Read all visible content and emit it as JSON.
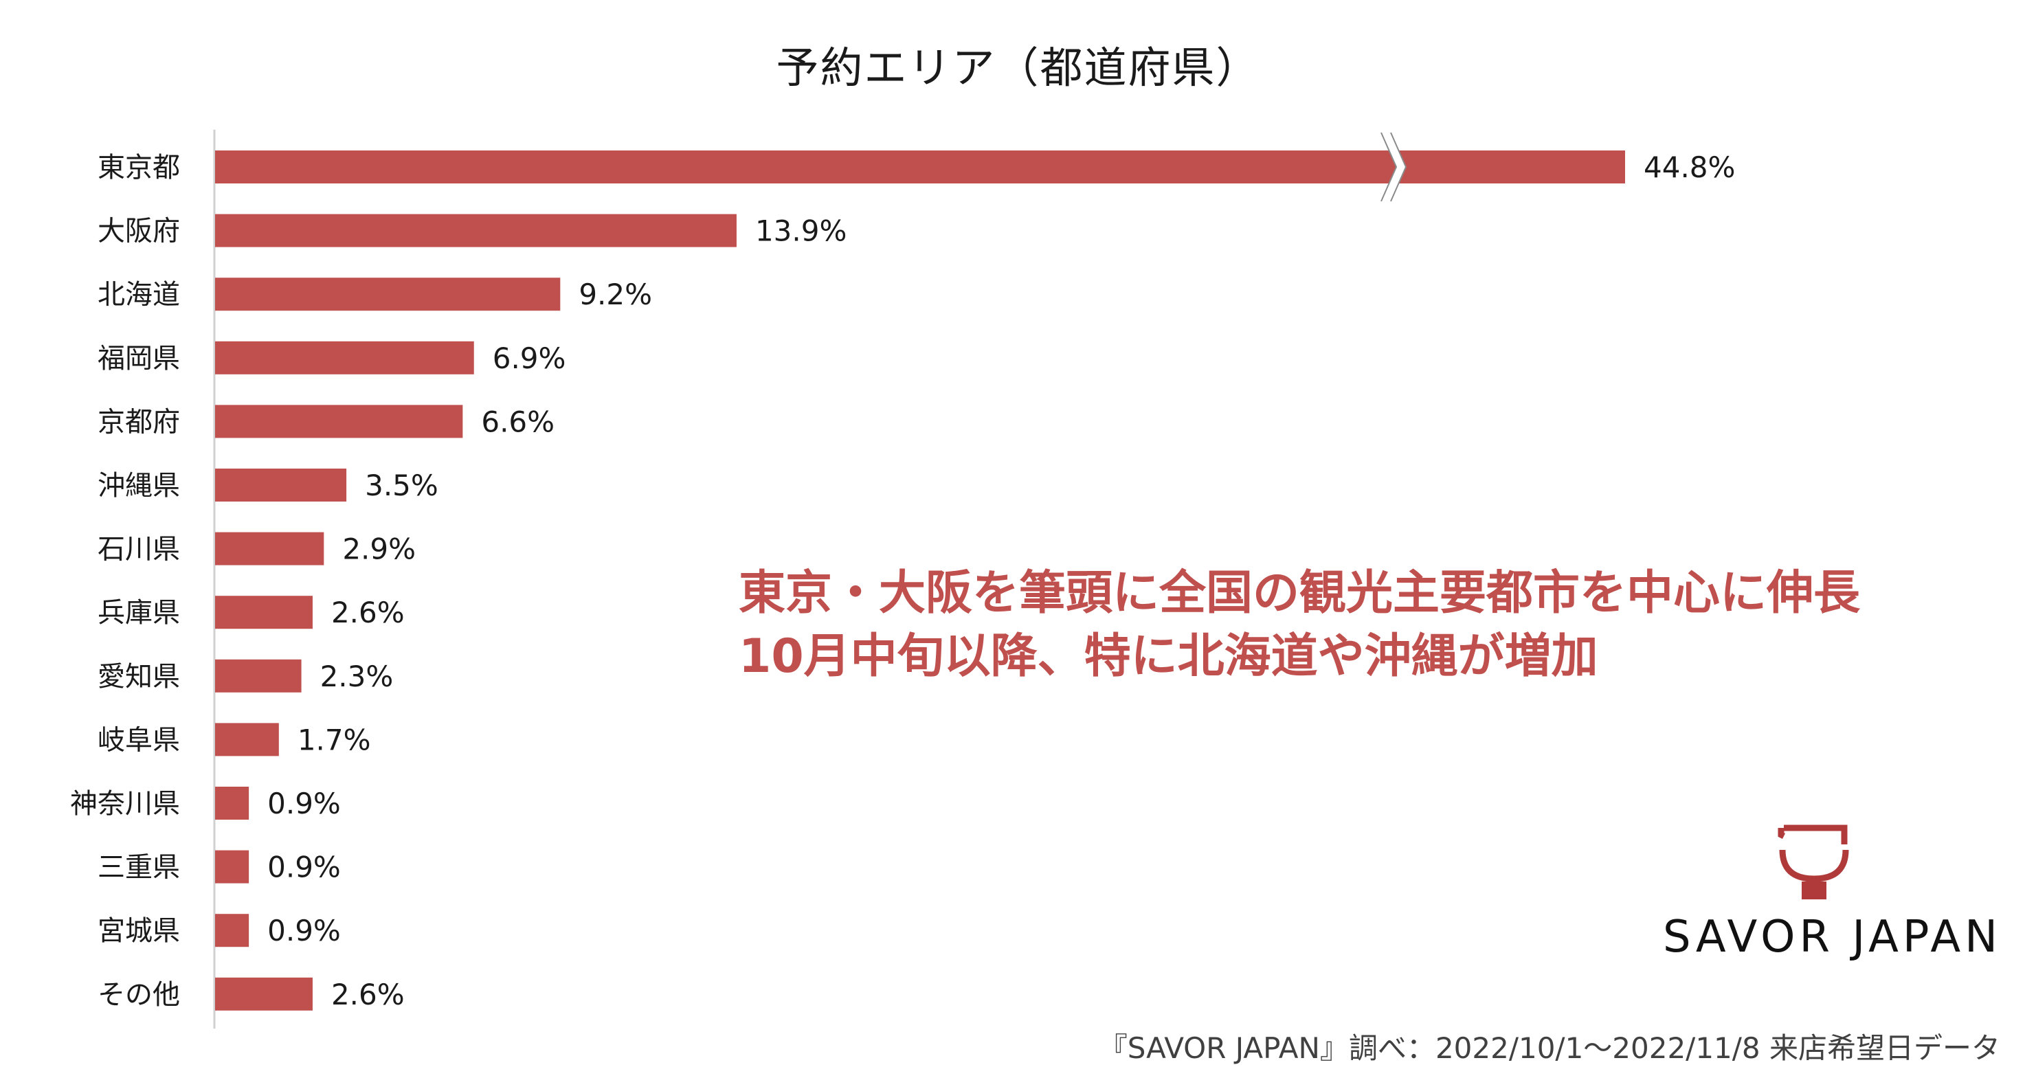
{
  "chart_data": {
    "type": "bar",
    "orientation": "horizontal",
    "title": "予約エリア（都道府県）",
    "categories": [
      "東京都",
      "大阪府",
      "北海道",
      "福岡県",
      "京都府",
      "沖縄県",
      "石川県",
      "兵庫県",
      "愛知県",
      "岐阜県",
      "神奈川県",
      "三重県",
      "宮城県",
      "その他"
    ],
    "values": [
      44.8,
      13.9,
      9.2,
      6.9,
      6.6,
      3.5,
      2.9,
      2.6,
      2.3,
      1.7,
      0.9,
      0.9,
      0.9,
      2.6
    ],
    "value_labels": [
      "44.8%",
      "13.9%",
      "9.2%",
      "6.9%",
      "6.6%",
      "3.5%",
      "2.9%",
      "2.6%",
      "2.3%",
      "1.7%",
      "0.9%",
      "0.9%",
      "0.9%",
      "2.6%"
    ],
    "unit": "%",
    "axis_break": {
      "category": "東京都",
      "note": "broken axis"
    },
    "grid": false,
    "legend": "none",
    "xlabel": "",
    "ylabel": ""
  },
  "annotation": {
    "line1": "東京・大阪を筆頭に全国の観光主要都市を中心に伸長",
    "line2": "10月中旬以降、特に北海道や沖縄が増加"
  },
  "logo": {
    "text": "SAVOR JAPAN",
    "icon": "savor-japan-logo-icon"
  },
  "source_note": "『SAVOR JAPAN』調べ：2022/10/1～2022/11/8 来店希望日データ",
  "colors": {
    "bar": "#c0504d",
    "annotation": "#c0504d",
    "axis": "#d0d0d0",
    "text": "#1a1a1a"
  }
}
